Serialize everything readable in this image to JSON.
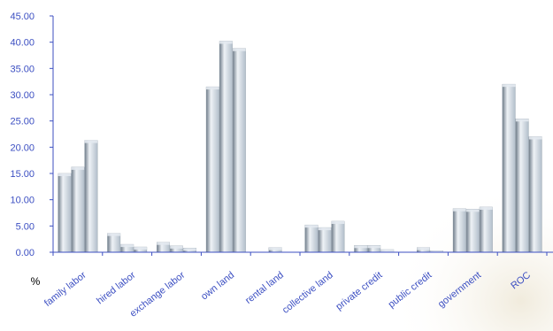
{
  "chart_data": {
    "type": "bar",
    "ylabel": "%",
    "ylim": [
      0,
      45
    ],
    "yticks": [
      "0.00",
      "5.00",
      "10.00",
      "15.00",
      "20.00",
      "25.00",
      "30.00",
      "35.00",
      "40.00",
      "45.00"
    ],
    "categories": [
      "family labor",
      "hired labor",
      "exchange labor",
      "own land",
      "rental land",
      "collective land",
      "private credit",
      "public credit",
      "government",
      "ROC"
    ],
    "series": [
      {
        "values": [
          15.0,
          3.6,
          1.9,
          31.5,
          0.0,
          5.2,
          1.3,
          0.0,
          8.3,
          32.0
        ]
      },
      {
        "values": [
          16.2,
          1.5,
          1.2,
          40.2,
          0.9,
          4.7,
          1.3,
          0.9,
          8.2,
          25.4
        ]
      },
      {
        "values": [
          21.3,
          1.0,
          0.8,
          38.8,
          0.0,
          5.9,
          0.5,
          0.3,
          8.6,
          22.0
        ]
      }
    ],
    "grid": false,
    "legend": "none"
  },
  "colors": {
    "axis": "#3c4fc2",
    "bar_light": "#eef2f6",
    "bar_mid": "#b3bfcb",
    "bar_dark": "#6f7c89"
  }
}
